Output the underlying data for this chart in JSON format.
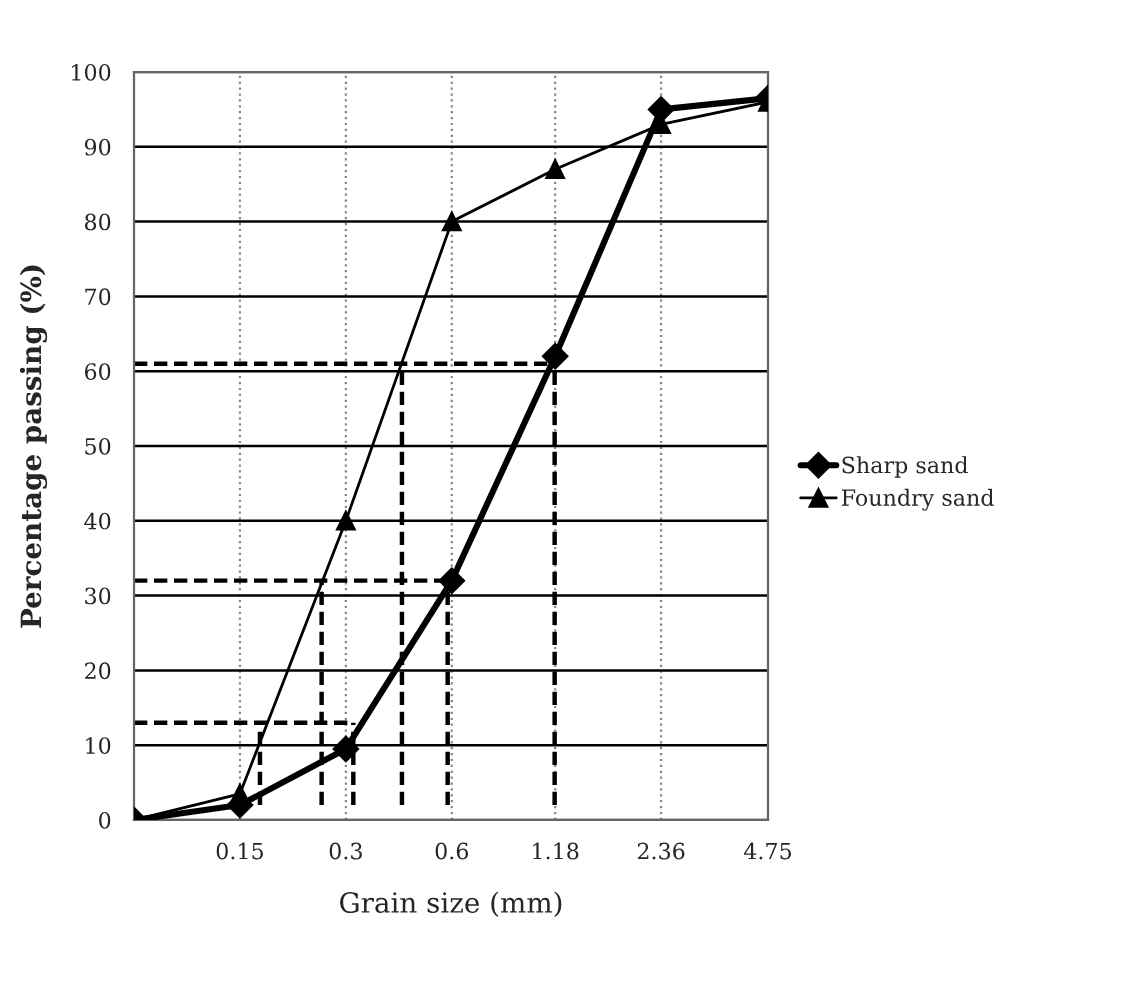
{
  "chart_data": {
    "type": "line",
    "xlabel": "Grain size (mm)",
    "ylabel": "Percentage passing (%)",
    "log": "x",
    "xlim": [
      0.075,
      4.75
    ],
    "ylim": [
      0,
      100
    ],
    "xticks": [
      0.15,
      0.3,
      0.6,
      1.18,
      2.36,
      4.75
    ],
    "yticks": [
      0,
      10,
      20,
      30,
      40,
      50,
      60,
      70,
      80,
      90,
      100
    ],
    "grid": true,
    "legend": "right",
    "line_style": "solid",
    "series": [
      {
        "name": "Sharp sand",
        "color": "#000000",
        "marker": "diamond",
        "x": [
          0.075,
          0.15,
          0.3,
          0.6,
          1.18,
          2.36,
          4.75
        ],
        "values": [
          0,
          2,
          9.5,
          32,
          62,
          95,
          96.5
        ]
      },
      {
        "name": "Foundry sand",
        "color": "#000000",
        "marker": "triangle",
        "x": [
          0.075,
          0.15,
          0.3,
          0.6,
          1.18,
          2.36,
          4.75
        ],
        "values": [
          0,
          3.5,
          40,
          80,
          87,
          93,
          96
        ]
      },
      {
        "color": "#000000",
        "marker": "none",
        "line_style": "dashed",
        "x": [
          0.075,
          0.315
        ],
        "values": [
          13,
          13
        ]
      },
      {
        "color": "#000000",
        "marker": "none",
        "line_style": "dashed",
        "x": [
          0.171,
          0.171
        ],
        "values": [
          2,
          13
        ]
      },
      {
        "color": "#000000",
        "marker": "none",
        "line_style": "dashed",
        "x": [
          0.315,
          0.315
        ],
        "values": [
          2,
          13
        ]
      },
      {
        "color": "#000000",
        "marker": "none",
        "line_style": "dashed",
        "x": [
          0.075,
          0.584
        ],
        "values": [
          32,
          32
        ]
      },
      {
        "color": "#000000",
        "marker": "none",
        "line_style": "dashed",
        "x": [
          0.256,
          0.256
        ],
        "values": [
          2,
          32
        ]
      },
      {
        "color": "#000000",
        "marker": "none",
        "line_style": "dashed",
        "x": [
          0.584,
          0.584
        ],
        "values": [
          2,
          32
        ]
      },
      {
        "color": "#000000",
        "marker": "none",
        "line_style": "dashed",
        "x": [
          0.075,
          1.176
        ],
        "values": [
          61,
          61
        ]
      },
      {
        "color": "#000000",
        "marker": "none",
        "line_style": "dashed",
        "x": [
          0.433,
          0.433
        ],
        "values": [
          2,
          61
        ]
      },
      {
        "color": "#000000",
        "marker": "none",
        "line_style": "dashed",
        "x": [
          1.176,
          1.176
        ],
        "values": [
          2,
          61
        ]
      }
    ]
  }
}
